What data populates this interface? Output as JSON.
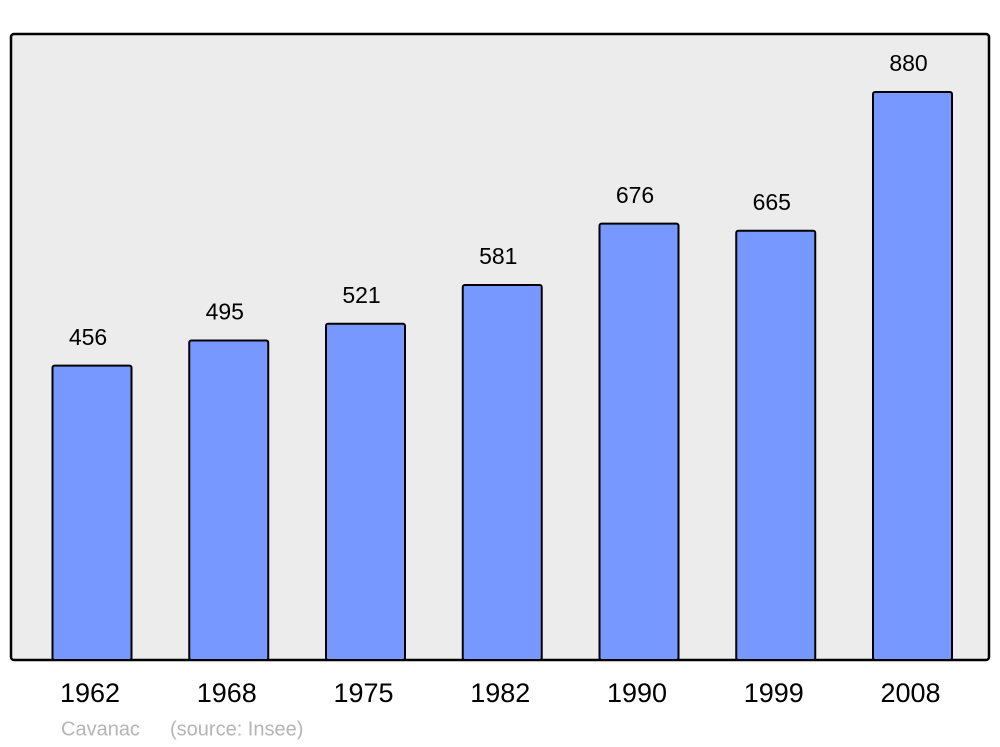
{
  "chart_data": {
    "type": "bar",
    "title": "Cavanac",
    "source": "(source: Insee)",
    "categories": [
      "1962",
      "1968",
      "1975",
      "1982",
      "1990",
      "1999",
      "2008"
    ],
    "values": [
      456,
      495,
      521,
      581,
      676,
      665,
      880
    ],
    "color": "#7799ff"
  }
}
